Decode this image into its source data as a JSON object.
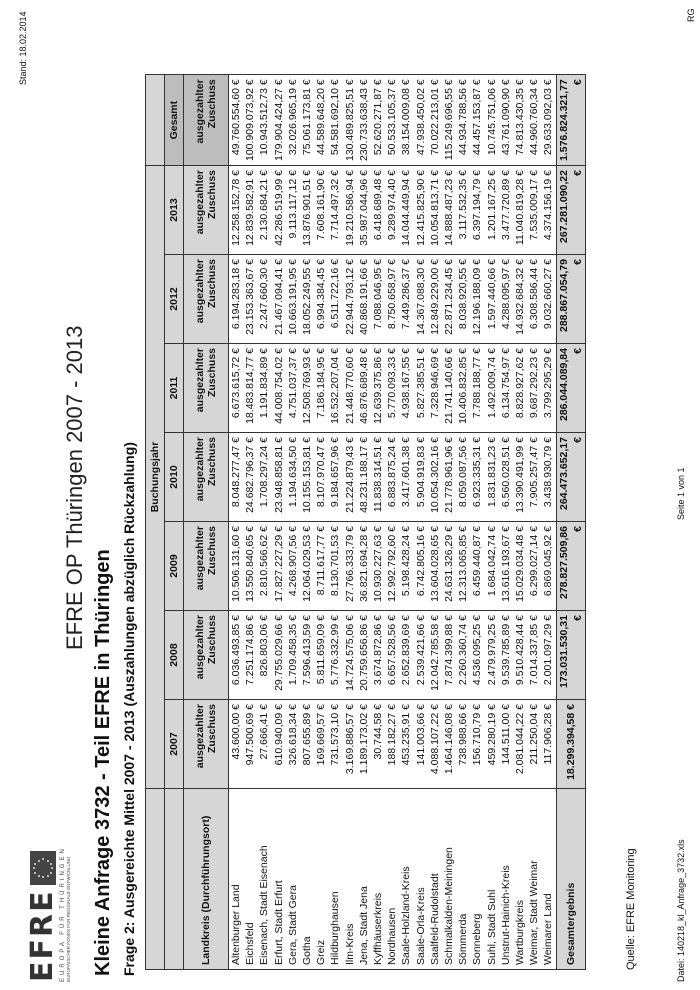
{
  "header": {
    "logo_text": "EFRE",
    "logo_sub1": "EUROPA FÜR THÜRINGEN",
    "logo_sub2": "EUROPÄISCHER FONDS FÜR REGIONALE ENTWICKLUNG",
    "op_title": "EFRE OP Thüringen 2007 - 2013",
    "title": "Kleine Anfrage 3732 - Teil EFRE in Thüringen",
    "subtitle": "Frage 2: Ausgereichte Mittel 2007 - 2013 (Auszahlungen abzüglich Rückzahlung)",
    "stand": "Stand: 18.02.2014",
    "initials": "RG"
  },
  "table": {
    "group_header": "Buchungsjahr",
    "row_header": "Landkreis (Durchführungsort)",
    "years": [
      "2007",
      "2008",
      "2009",
      "2010",
      "2011",
      "2012",
      "2013"
    ],
    "total_col": "Gesamt",
    "sub_header_1": "ausgezahlter",
    "sub_header_2": "Zuschuss",
    "rows": [
      {
        "name": "Altenburger Land",
        "values": [
          "43.600,00 €",
          "6.036.493,85 €",
          "10.506.131,60 €",
          "8.048.277,47 €",
          "6.673.615,72 €",
          "6.194.283,18 €",
          "12.258.152,78 €",
          "49.760.554,60 €"
        ]
      },
      {
        "name": "Eichsfeld",
        "values": [
          "947.500,69 €",
          "7.251.174,86 €",
          "13.550.840,65 €",
          "24.682.796,37 €",
          "18.483.814,77 €",
          "23.153.363,67 €",
          "12.839.582,91 €",
          "100.909.073,92 €"
        ]
      },
      {
        "name": "Eisenach, Stadt Eisenach",
        "values": [
          "27.666,41 €",
          "826.803,06 €",
          "2.810.566,62 €",
          "1.708.297,24 €",
          "1.191.834,89 €",
          "2.247.660,30 €",
          "2.130.684,21 €",
          "10.943.512,73 €"
        ]
      },
      {
        "name": "Erfurt, Stadt Erfurt",
        "values": [
          "610.940,09 €",
          "29.755.029,66 €",
          "17.827.227,29 €",
          "23.948.858,81 €",
          "44.008.754,02 €",
          "21.467.094,41 €",
          "42.286.519,99 €",
          "179.904.424,27 €"
        ]
      },
      {
        "name": "Gera, Stadt Gera",
        "values": [
          "326.618,34 €",
          "1.709.458,35 €",
          "4.268.907,56 €",
          "1.194.634,50 €",
          "4.751.037,37 €",
          "10.663.191,95 €",
          "9.113.117,12 €",
          "32.026.965,19 €"
        ]
      },
      {
        "name": "Gotha",
        "values": [
          "807.655,89 €",
          "7.596.413,59 €",
          "12.064.029,53 €",
          "10.155.153,81 €",
          "12.508.769,93 €",
          "18.052.249,55 €",
          "13.876.901,51 €",
          "75.061.173,81 €"
        ]
      },
      {
        "name": "Greiz",
        "values": [
          "169.669,57 €",
          "5.811.659,09 €",
          "8.711.617,77 €",
          "8.107.970,47 €",
          "7.186.184,95 €",
          "6.994.384,45 €",
          "7.608.161,90 €",
          "44.589.648,20 €"
        ]
      },
      {
        "name": "Hildburghausen",
        "values": [
          "731.573,10 €",
          "5.776.332,99 €",
          "8.130.701,53 €",
          "9.184.657,96 €",
          "16.532.207,04 €",
          "6.511.722,16 €",
          "7.714.497,32 €",
          "54.581.692,10 €"
        ]
      },
      {
        "name": "Ilm-Kreis",
        "values": [
          "3.169.886,57 €",
          "14.724.575,06 €",
          "27.766.333,79 €",
          "21.224.879,43 €",
          "21.448.770,60 €",
          "22.944.793,12 €",
          "19.210.586,94 €",
          "130.489.825,51 €"
        ]
      },
      {
        "name": "Jena, Stadt Jena",
        "values": [
          "1.189.173,02 €",
          "20.759.656,86 €",
          "36.821.694,28 €",
          "48.231.188,17 €",
          "46.876.689,48 €",
          "40.868.191,66 €",
          "35.987.044,96 €",
          "230.733.638,43 €"
        ]
      },
      {
        "name": "Kyffhäuserkreis",
        "values": [
          "30.744,58 €",
          "3.674.872,86 €",
          "10.930.227,63 €",
          "11.838.314,51 €",
          "12.639.375,86 €",
          "7.088.046,95 €",
          "6.418.689,48 €",
          "52.620.271,87 €"
        ]
      },
      {
        "name": "Nordhausen",
        "values": [
          "188.182,27 €",
          "6.657.528,56 €",
          "12.992.792,60 €",
          "6.883.875,24 €",
          "5.770.093,33 €",
          "8.750.658,97 €",
          "9.289.974,40 €",
          "50.533.105,37 €"
        ]
      },
      {
        "name": "Saale-Holzland-Kreis",
        "values": [
          "453.235,91 €",
          "2.652.839,69 €",
          "5.198.428,24 €",
          "3.417.601,38 €",
          "4.938.167,55 €",
          "7.449.286,37 €",
          "14.044.449,94 €",
          "38.154.009,08 €"
        ]
      },
      {
        "name": "Saale-Orla-Kreis",
        "values": [
          "141.003,66 €",
          "2.539.421,66 €",
          "6.742.805,16 €",
          "5.904.919,83 €",
          "5.827.385,51 €",
          "14.367.088,30 €",
          "12.415.825,90 €",
          "47.938.450,02 €"
        ]
      },
      {
        "name": "Saalfeld-Rudolstadt",
        "values": [
          "4.088.107,22 €",
          "12.042.785,58 €",
          "13.604.028,65 €",
          "10.054.302,16 €",
          "7.328.946,69 €",
          "12.849.229,00 €",
          "10.054.813,71 €",
          "70.022.213,01 €"
        ]
      },
      {
        "name": "Schmalkalden-Meiningen",
        "values": [
          "1.464.146,08 €",
          "7.874.399,88 €",
          "24.631.326,29 €",
          "21.778.961,96 €",
          "21.741.140,66 €",
          "22.871.234,45 €",
          "14.888.487,23 €",
          "115.249.696,55 €"
        ]
      },
      {
        "name": "Sömmerda",
        "values": [
          "738.988,66 €",
          "2.260.360,74 €",
          "12.313.065,85 €",
          "8.059.087,56 €",
          "10.406.832,85 €",
          "8.038.920,55 €",
          "3.117.532,35 €",
          "44.934.788,56 €"
        ]
      },
      {
        "name": "Sonneberg",
        "values": [
          "156.710,79 €",
          "4.536.095,25 €",
          "6.459.440,87 €",
          "6.923.335,31 €",
          "7.788.188,77 €",
          "12.196.188,09 €",
          "6.397.194,79 €",
          "44.457.153,87 €"
        ]
      },
      {
        "name": "Suhl, Stadt Suhl",
        "values": [
          "459.280,19 €",
          "2.479.979,25 €",
          "1.684.042,74 €",
          "1.831.831,23 €",
          "1.492.009,74 €",
          "1.597.440,66 €",
          "1.201.167,25 €",
          "10.745.751,06 €"
        ]
      },
      {
        "name": "Unstrut-Hainich-Kreis",
        "values": [
          "144.511,00 €",
          "9.539.785,89 €",
          "13.616.193,67 €",
          "6.560.028,51 €",
          "6.134.754,97 €",
          "4.288.095,97 €",
          "3.477.720,89 €",
          "43.761.090,90 €"
        ]
      },
      {
        "name": "Wartburgkreis",
        "values": [
          "2.081.044,22 €",
          "9.510.428,44 €",
          "15.029.034,48 €",
          "13.390.491,99 €",
          "8.828.927,62 €",
          "14.932.684,32 €",
          "11.040.819,28 €",
          "74.813.430,35 €"
        ]
      },
      {
        "name": "Weimar, Stadt Weimar",
        "values": [
          "211.250,04 €",
          "7.014.337,85 €",
          "6.299.027,14 €",
          "7.905.257,47 €",
          "9.687.292,23 €",
          "6.308.586,44 €",
          "7.535.009,17 €",
          "44.960.760,34 €"
        ]
      },
      {
        "name": "Weimarer Land",
        "values": [
          "117.906,28 €",
          "2.001.097,29 €",
          "6.869.045,92 €",
          "3.438.930,79 €",
          "3.799.295,29 €",
          "9.032.660,27 €",
          "4.374.156,19 €",
          "29.633.092,03 €"
        ]
      }
    ],
    "total": {
      "name": "Gesamtergebnis",
      "values": [
        "18.299.394,58 €",
        "173.031.530,31 €",
        "278.827.509,86 €",
        "264.473.652,17 €",
        "286.044.089,84 €",
        "288.867.054,79 €",
        "267.281.090,22 €",
        "1.576.824.321,77 €"
      ]
    }
  },
  "footer": {
    "source": "Quelle: EFRE Monitoring",
    "file": "Datei: 140218_kl_Anfrage_3732.xls",
    "page": "Seite 1 von 1"
  }
}
